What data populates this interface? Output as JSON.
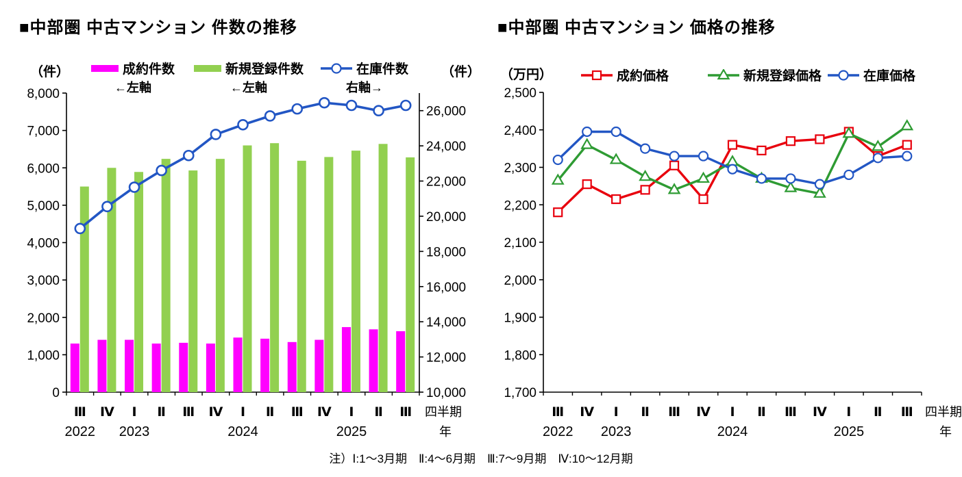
{
  "page": {
    "note": "注）Ⅰ:1～3月期　Ⅱ:4～6月期　Ⅲ:7～9月期　Ⅳ:10～12月期"
  },
  "chart_data": [
    {
      "id": "volume-trend",
      "type": "bar",
      "title": "■中部圏 中古マンション 件数の推移",
      "unit_left": "（件）",
      "unit_right": "（件）",
      "x_axis_caption": "四半期",
      "x_axis_caption2": "年",
      "grid": false,
      "legend_position": "top",
      "categories": [
        "Ⅲ",
        "Ⅳ",
        "Ⅰ",
        "Ⅱ",
        "Ⅲ",
        "Ⅳ",
        "Ⅰ",
        "Ⅱ",
        "Ⅲ",
        "Ⅳ",
        "Ⅰ",
        "Ⅱ",
        "Ⅲ"
      ],
      "years": [
        {
          "index": 0,
          "label": "2022"
        },
        {
          "index": 2,
          "label": "2023"
        },
        {
          "index": 6,
          "label": "2024"
        },
        {
          "index": 10,
          "label": "2025"
        }
      ],
      "axis_left": {
        "min": 0,
        "max": 8000,
        "step": 1000
      },
      "axis_right": {
        "min": 10000,
        "max": 27000,
        "step": 2000,
        "label_max": 26000
      },
      "series": [
        {
          "name": "成約件数",
          "axis_note": "←左軸",
          "kind": "bar",
          "marker": "none",
          "axis": "left",
          "color": "#ff00ff",
          "values": [
            1300,
            1400,
            1400,
            1300,
            1320,
            1300,
            1460,
            1430,
            1340,
            1400,
            1740,
            1680,
            1630
          ]
        },
        {
          "name": "新規登録件数",
          "axis_note": "←左軸",
          "kind": "bar",
          "marker": "none",
          "axis": "left",
          "color": "#92d050",
          "values": [
            5500,
            6000,
            5890,
            6240,
            5930,
            6240,
            6600,
            6660,
            6190,
            6290,
            6460,
            6640,
            6280
          ]
        },
        {
          "name": "在庫件数",
          "axis_note": "右軸→",
          "kind": "line",
          "marker": "circle",
          "axis": "right",
          "color": "#2256c4",
          "values": [
            19300,
            20550,
            21650,
            22600,
            23450,
            24650,
            25200,
            25700,
            26100,
            26450,
            26300,
            26000,
            26300
          ]
        }
      ]
    },
    {
      "id": "price-trend",
      "type": "line",
      "title": "■中部圏 中古マンション 価格の推移",
      "unit_left": "（万円）",
      "x_axis_caption": "四半期",
      "x_axis_caption2": "年",
      "grid": false,
      "legend_position": "top",
      "categories": [
        "Ⅲ",
        "Ⅳ",
        "Ⅰ",
        "Ⅱ",
        "Ⅲ",
        "Ⅳ",
        "Ⅰ",
        "Ⅱ",
        "Ⅲ",
        "Ⅳ",
        "Ⅰ",
        "Ⅱ",
        "Ⅲ"
      ],
      "years": [
        {
          "index": 0,
          "label": "2022"
        },
        {
          "index": 2,
          "label": "2023"
        },
        {
          "index": 6,
          "label": "2024"
        },
        {
          "index": 10,
          "label": "2025"
        }
      ],
      "axis_left": {
        "min": 1700,
        "max": 2500,
        "step": 100
      },
      "series": [
        {
          "name": "成約価格",
          "kind": "line",
          "marker": "square",
          "axis": "left",
          "color": "#e8000d",
          "values": [
            2180,
            2255,
            2215,
            2240,
            2305,
            2215,
            2360,
            2345,
            2370,
            2375,
            2395,
            2330,
            2360
          ]
        },
        {
          "name": "新規登録価格",
          "kind": "line",
          "marker": "triangle",
          "axis": "left",
          "color": "#2e9b33",
          "values": [
            2265,
            2360,
            2320,
            2275,
            2240,
            2270,
            2315,
            2270,
            2245,
            2230,
            2390,
            2355,
            2410
          ]
        },
        {
          "name": "在庫価格",
          "kind": "line",
          "marker": "circle",
          "axis": "left",
          "color": "#2256c4",
          "values": [
            2320,
            2395,
            2395,
            2350,
            2330,
            2330,
            2295,
            2270,
            2270,
            2255,
            2280,
            2325,
            2330
          ]
        }
      ]
    }
  ]
}
